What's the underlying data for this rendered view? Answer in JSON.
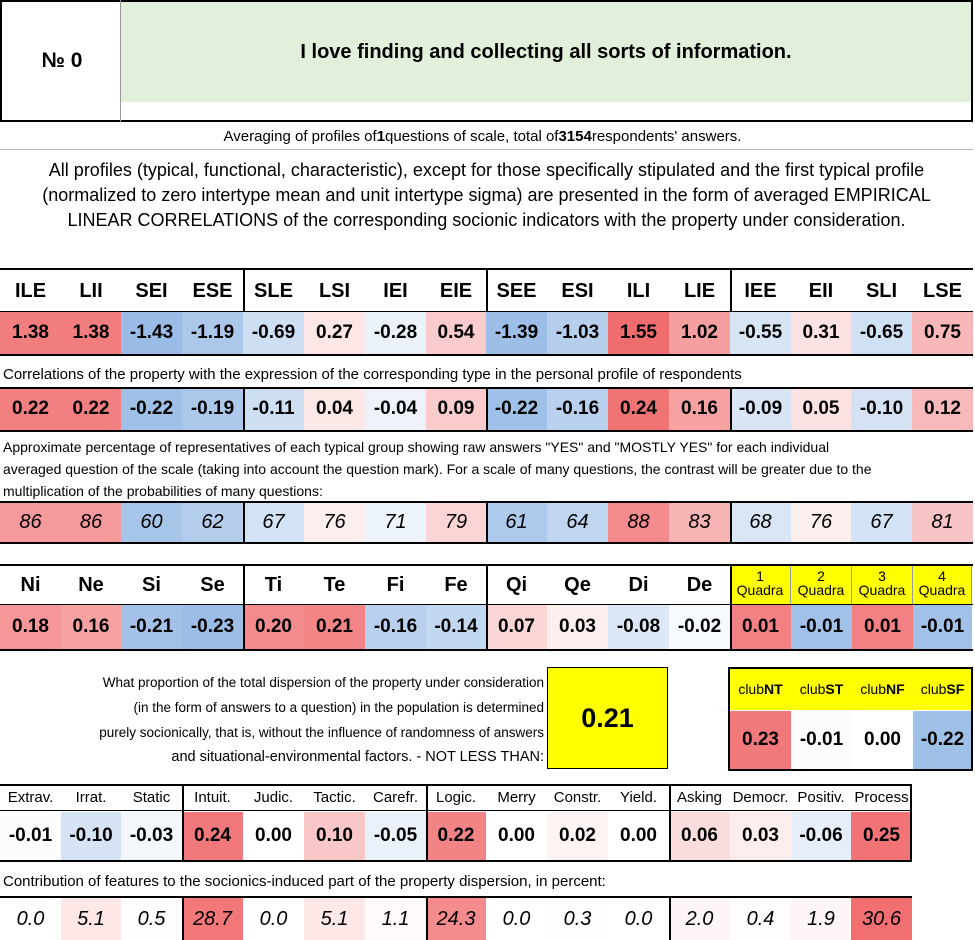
{
  "question": {
    "label": "№",
    "number": "0",
    "text": "I love finding and collecting all sorts of information."
  },
  "averaging": {
    "pre": "Averaging of profiles of ",
    "n_q": "1",
    "mid": " questions of scale, total of ",
    "n_resp": "3154",
    "post": " respondents' answers."
  },
  "intro": {
    "line1": "All profiles (typical, functional, characteristic), except for those specifically stipulated and the first typical profile",
    "line2": "(normalized to zero intertype mean and unit intertype sigma) are presented in the form of averaged EMPIRICAL",
    "line3": "LINEAR CORRELATIONS of the corresponding socionic indicators with the property under consideration."
  },
  "types": [
    "ILE",
    "LII",
    "SEI",
    "ESE",
    "SLE",
    "LSI",
    "IEI",
    "EIE",
    "SEE",
    "ESI",
    "ILI",
    "LIE",
    "IEE",
    "EII",
    "SLI",
    "LSE"
  ],
  "typical_profile": [
    "1.38",
    "1.38",
    "-1.43",
    "-1.19",
    "-0.69",
    "0.27",
    "-0.28",
    "0.54",
    "-1.39",
    "-1.03",
    "1.55",
    "1.02",
    "-0.55",
    "0.31",
    "-0.65",
    "0.75"
  ],
  "corr_caption": "Correlations of the property with the expression of the corresponding type in the personal profile of respondents",
  "corr_values": [
    "0.22",
    "0.22",
    "-0.22",
    "-0.19",
    "-0.11",
    "0.04",
    "-0.04",
    "0.09",
    "-0.22",
    "-0.16",
    "0.24",
    "0.16",
    "-0.09",
    "0.05",
    "-0.10",
    "0.12"
  ],
  "pct_caption": {
    "line1": "Approximate percentage of representatives of each typical group showing raw answers \"YES\" and \"MOSTLY YES\" for each individual",
    "line2": "averaged question of the scale (taking into account the question mark). For a scale of many questions, the contrast will be greater due to the",
    "line3": "multiplication of the probabilities of many questions:"
  },
  "pct_values": [
    "86",
    "86",
    "60",
    "62",
    "67",
    "76",
    "71",
    "79",
    "61",
    "64",
    "88",
    "83",
    "68",
    "76",
    "67",
    "81"
  ],
  "functions": [
    "Ni",
    "Ne",
    "Si",
    "Se",
    "Ti",
    "Te",
    "Fi",
    "Fe",
    "Qi",
    "Qe",
    "Di",
    "De"
  ],
  "function_values": [
    "0.18",
    "0.16",
    "-0.21",
    "-0.23",
    "0.20",
    "0.21",
    "-0.16",
    "-0.14",
    "0.07",
    "0.03",
    "-0.08",
    "-0.02"
  ],
  "quadras": [
    {
      "n": "1",
      "w": "Quadra"
    },
    {
      "n": "2",
      "w": "Quadra"
    },
    {
      "n": "3",
      "w": "Quadra"
    },
    {
      "n": "4",
      "w": "Quadra"
    }
  ],
  "quadra_values": [
    "0.01",
    "-0.01",
    "0.01",
    "-0.01"
  ],
  "dispersion": {
    "line1": "What proportion of the total dispersion of the property under consideration",
    "line2": "(in the form of answers to a question) in the population is determined",
    "line3": "purely socionically, that is, without the influence of randomness of answers",
    "line4": "and situational-environmental factors. - NOT LESS THAN:",
    "value": "0.21"
  },
  "clubs": [
    {
      "pre": "club",
      "suf": "NT"
    },
    {
      "pre": "club",
      "suf": "ST"
    },
    {
      "pre": "club",
      "suf": "NF"
    },
    {
      "pre": "club",
      "suf": "SF"
    }
  ],
  "club_values": [
    "0.23",
    "-0.01",
    "0.00",
    "-0.22"
  ],
  "traits": [
    "Extrav.",
    "Irrat.",
    "Static",
    "Intuit.",
    "Judic.",
    "Tactic.",
    "Carefr.",
    "Logic.",
    "Merry",
    "Constr.",
    "Yield.",
    "Asking",
    "Democr.",
    "Positiv.",
    "Process"
  ],
  "trait_values": [
    "-0.01",
    "-0.10",
    "-0.03",
    "0.24",
    "0.00",
    "0.10",
    "-0.05",
    "0.22",
    "0.00",
    "0.02",
    "0.00",
    "0.06",
    "0.03",
    "-0.06",
    "0.25"
  ],
  "contrib_caption": "Contribution of features to the socionics-induced part of the property dispersion, in percent:",
  "contrib_values": [
    "0.0",
    "5.1",
    "0.5",
    "28.7",
    "0.0",
    "5.1",
    "1.1",
    "24.3",
    "0.0",
    "0.3",
    "0.0",
    "2.0",
    "0.4",
    "1.9",
    "30.6"
  ],
  "colors": {
    "question_bg": "#e2efda",
    "highlight": "#ffff00",
    "strong_red": "#f0686a",
    "strong_blue": "#8eb4e3"
  }
}
